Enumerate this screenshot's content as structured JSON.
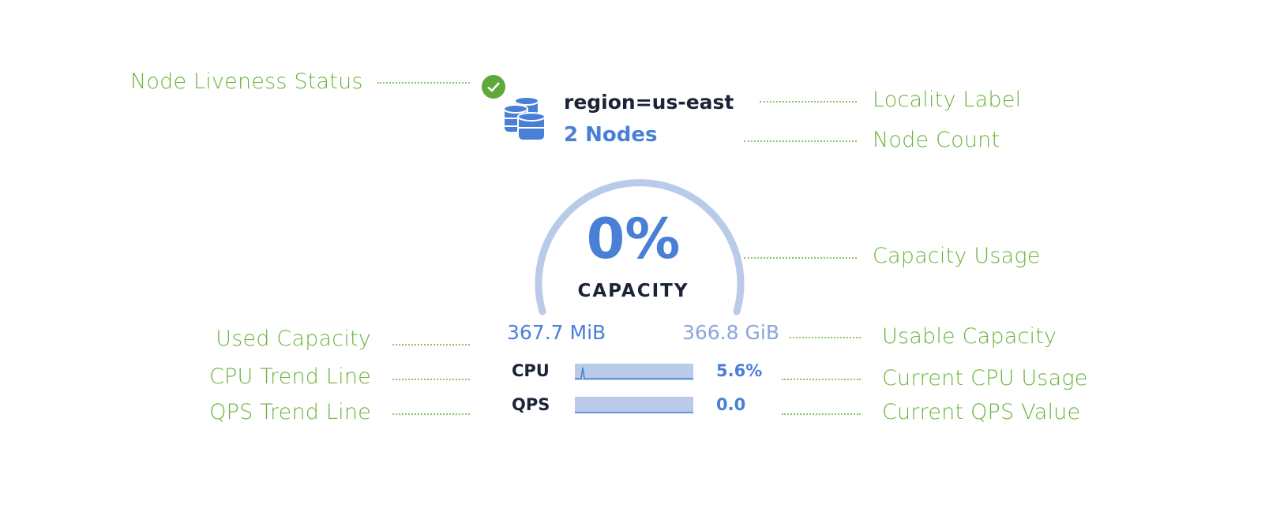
{
  "widget": {
    "locality": "region=us-east",
    "node_count": "2 Nodes",
    "capacity_percent": "0%",
    "capacity_label": "CAPACITY",
    "capacity_fraction": 0,
    "used_capacity": "367.7 MiB",
    "usable_capacity": "366.8 GiB",
    "cpu_label": "CPU",
    "cpu_value": "5.6%",
    "qps_label": "QPS",
    "qps_value": "0.0",
    "status": "live",
    "icons": {
      "status": "check-circle-icon",
      "nodes": "database-icon"
    }
  },
  "annotations": {
    "liveness": "Node Liveness Status",
    "locality": "Locality Label",
    "node_count": "Node Count",
    "capacity_usage": "Capacity Usage",
    "used_capacity": "Used Capacity",
    "usable_capacity": "Usable Capacity",
    "cpu_trend": "CPU Trend Line",
    "current_cpu": "Current CPU Usage",
    "qps_trend": "QPS Trend Line",
    "current_qps": "Current QPS Value"
  },
  "colors": {
    "annotation": "#6bb33c",
    "accent": "#4a7fd6",
    "gauge_track": "#b9cbe9",
    "status_ok": "#5fa83a"
  }
}
